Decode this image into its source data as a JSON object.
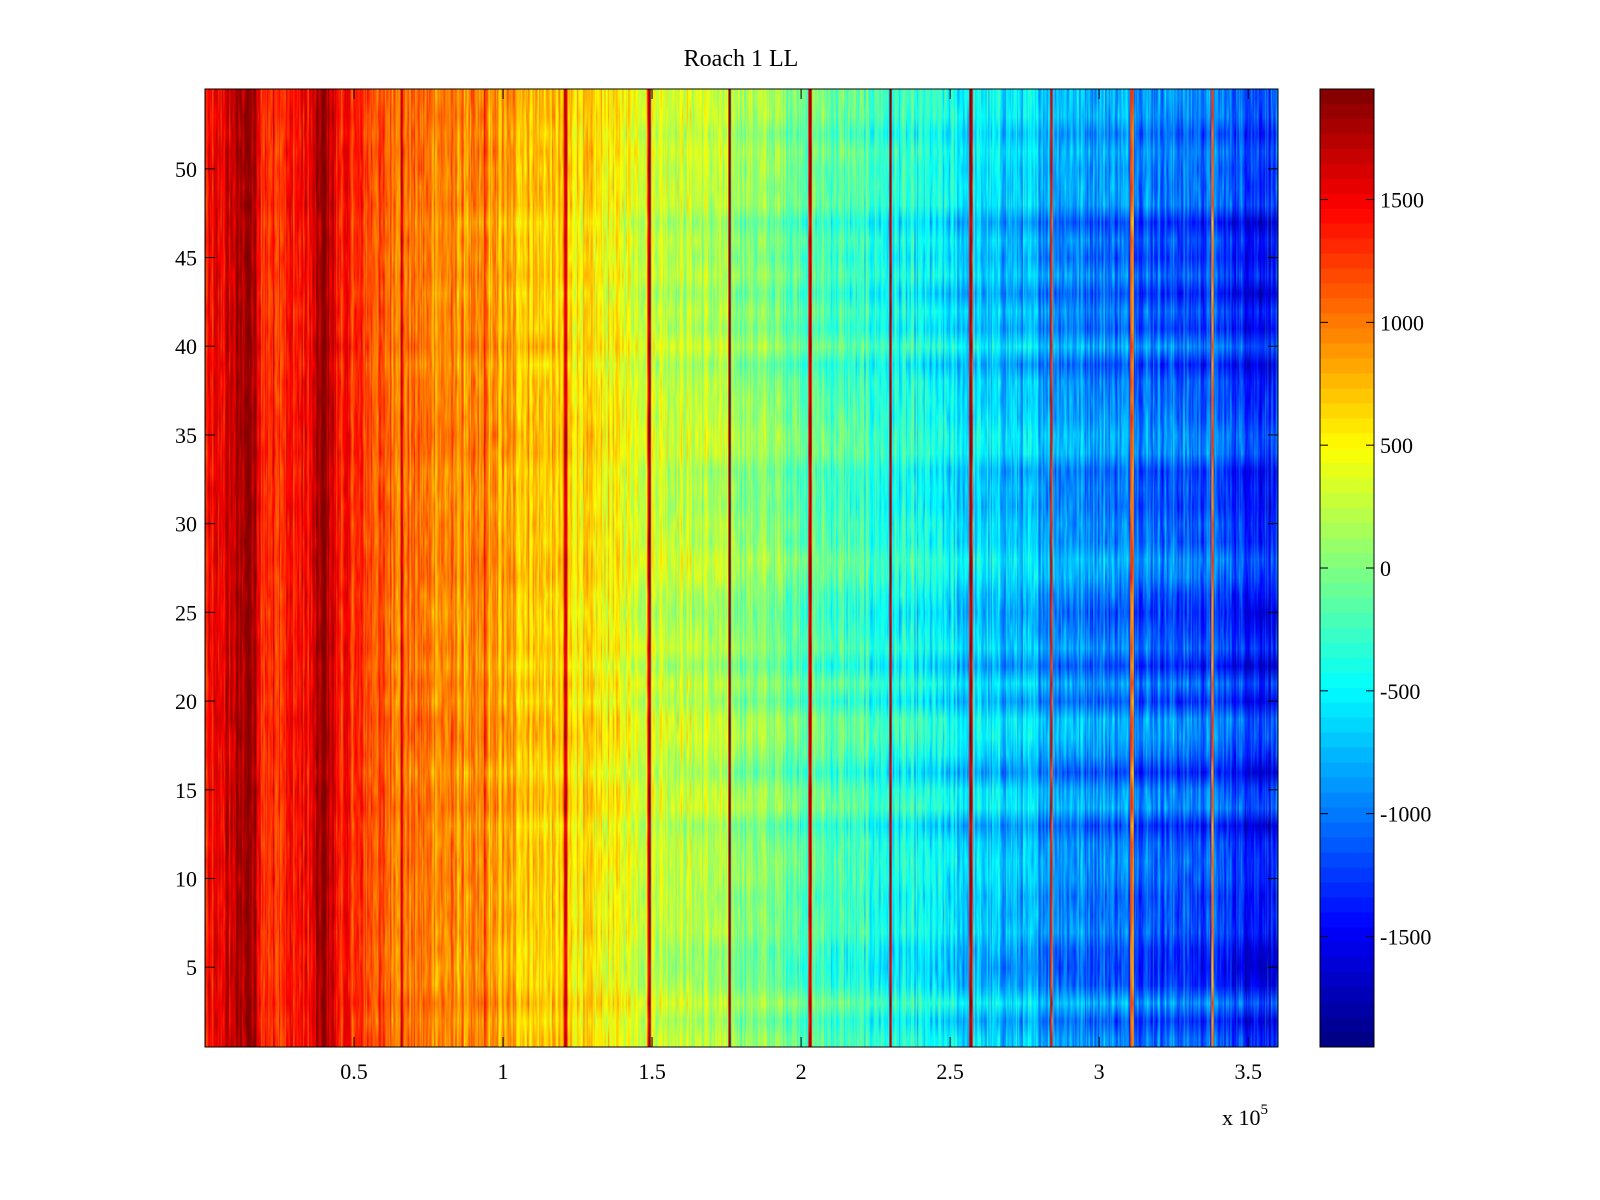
{
  "chart_data": {
    "type": "heatmap",
    "title": "Roach 1 LL",
    "colormap": "jet",
    "x": {
      "range": [
        0,
        360000
      ],
      "ticks": [
        50000,
        100000,
        150000,
        200000,
        250000,
        300000,
        350000
      ],
      "tick_labels": [
        "0.5",
        "1",
        "1.5",
        "2",
        "2.5",
        "3",
        "3.5"
      ],
      "multiplier_label": "x 10",
      "multiplier_exponent": "5"
    },
    "y": {
      "range": [
        0.5,
        54.5
      ],
      "rows": 54,
      "ticks": [
        5,
        10,
        15,
        20,
        25,
        30,
        35,
        40,
        45,
        50
      ],
      "tick_labels": [
        "5",
        "10",
        "15",
        "20",
        "25",
        "30",
        "35",
        "40",
        "45",
        "50"
      ]
    },
    "colorbar": {
      "range": [
        -1950,
        1950
      ],
      "ticks": [
        -1500,
        -1000,
        -500,
        0,
        500,
        1000,
        1500
      ],
      "tick_labels": [
        "-1500",
        "-1000",
        "-500",
        "0",
        "500",
        "1000",
        "1500"
      ]
    },
    "trend": {
      "x": [
        0,
        10000,
        20000,
        40000,
        60000,
        100000,
        150000,
        200000,
        250000,
        300000,
        340000,
        360000
      ],
      "value": [
        1300,
        1700,
        1300,
        1500,
        1100,
        800,
        350,
        -100,
        -600,
        -950,
        -1200,
        -1400
      ]
    },
    "bright_bands": [
      {
        "x": 14000,
        "value": 1950
      },
      {
        "x": 40000,
        "value": 1900
      },
      {
        "x": 66000,
        "value": 1600
      },
      {
        "x": 94000,
        "value": 1500
      },
      {
        "x": 121000,
        "value": 1700
      },
      {
        "x": 149000,
        "value": 1800
      },
      {
        "x": 176000,
        "value": 1800
      },
      {
        "x": 203000,
        "value": 1700
      },
      {
        "x": 230000,
        "value": 1700
      },
      {
        "x": 257000,
        "value": 1800
      },
      {
        "x": 284000,
        "value": 1500
      },
      {
        "x": 311000,
        "value": 1300
      },
      {
        "x": 338000,
        "value": 1300
      }
    ]
  }
}
